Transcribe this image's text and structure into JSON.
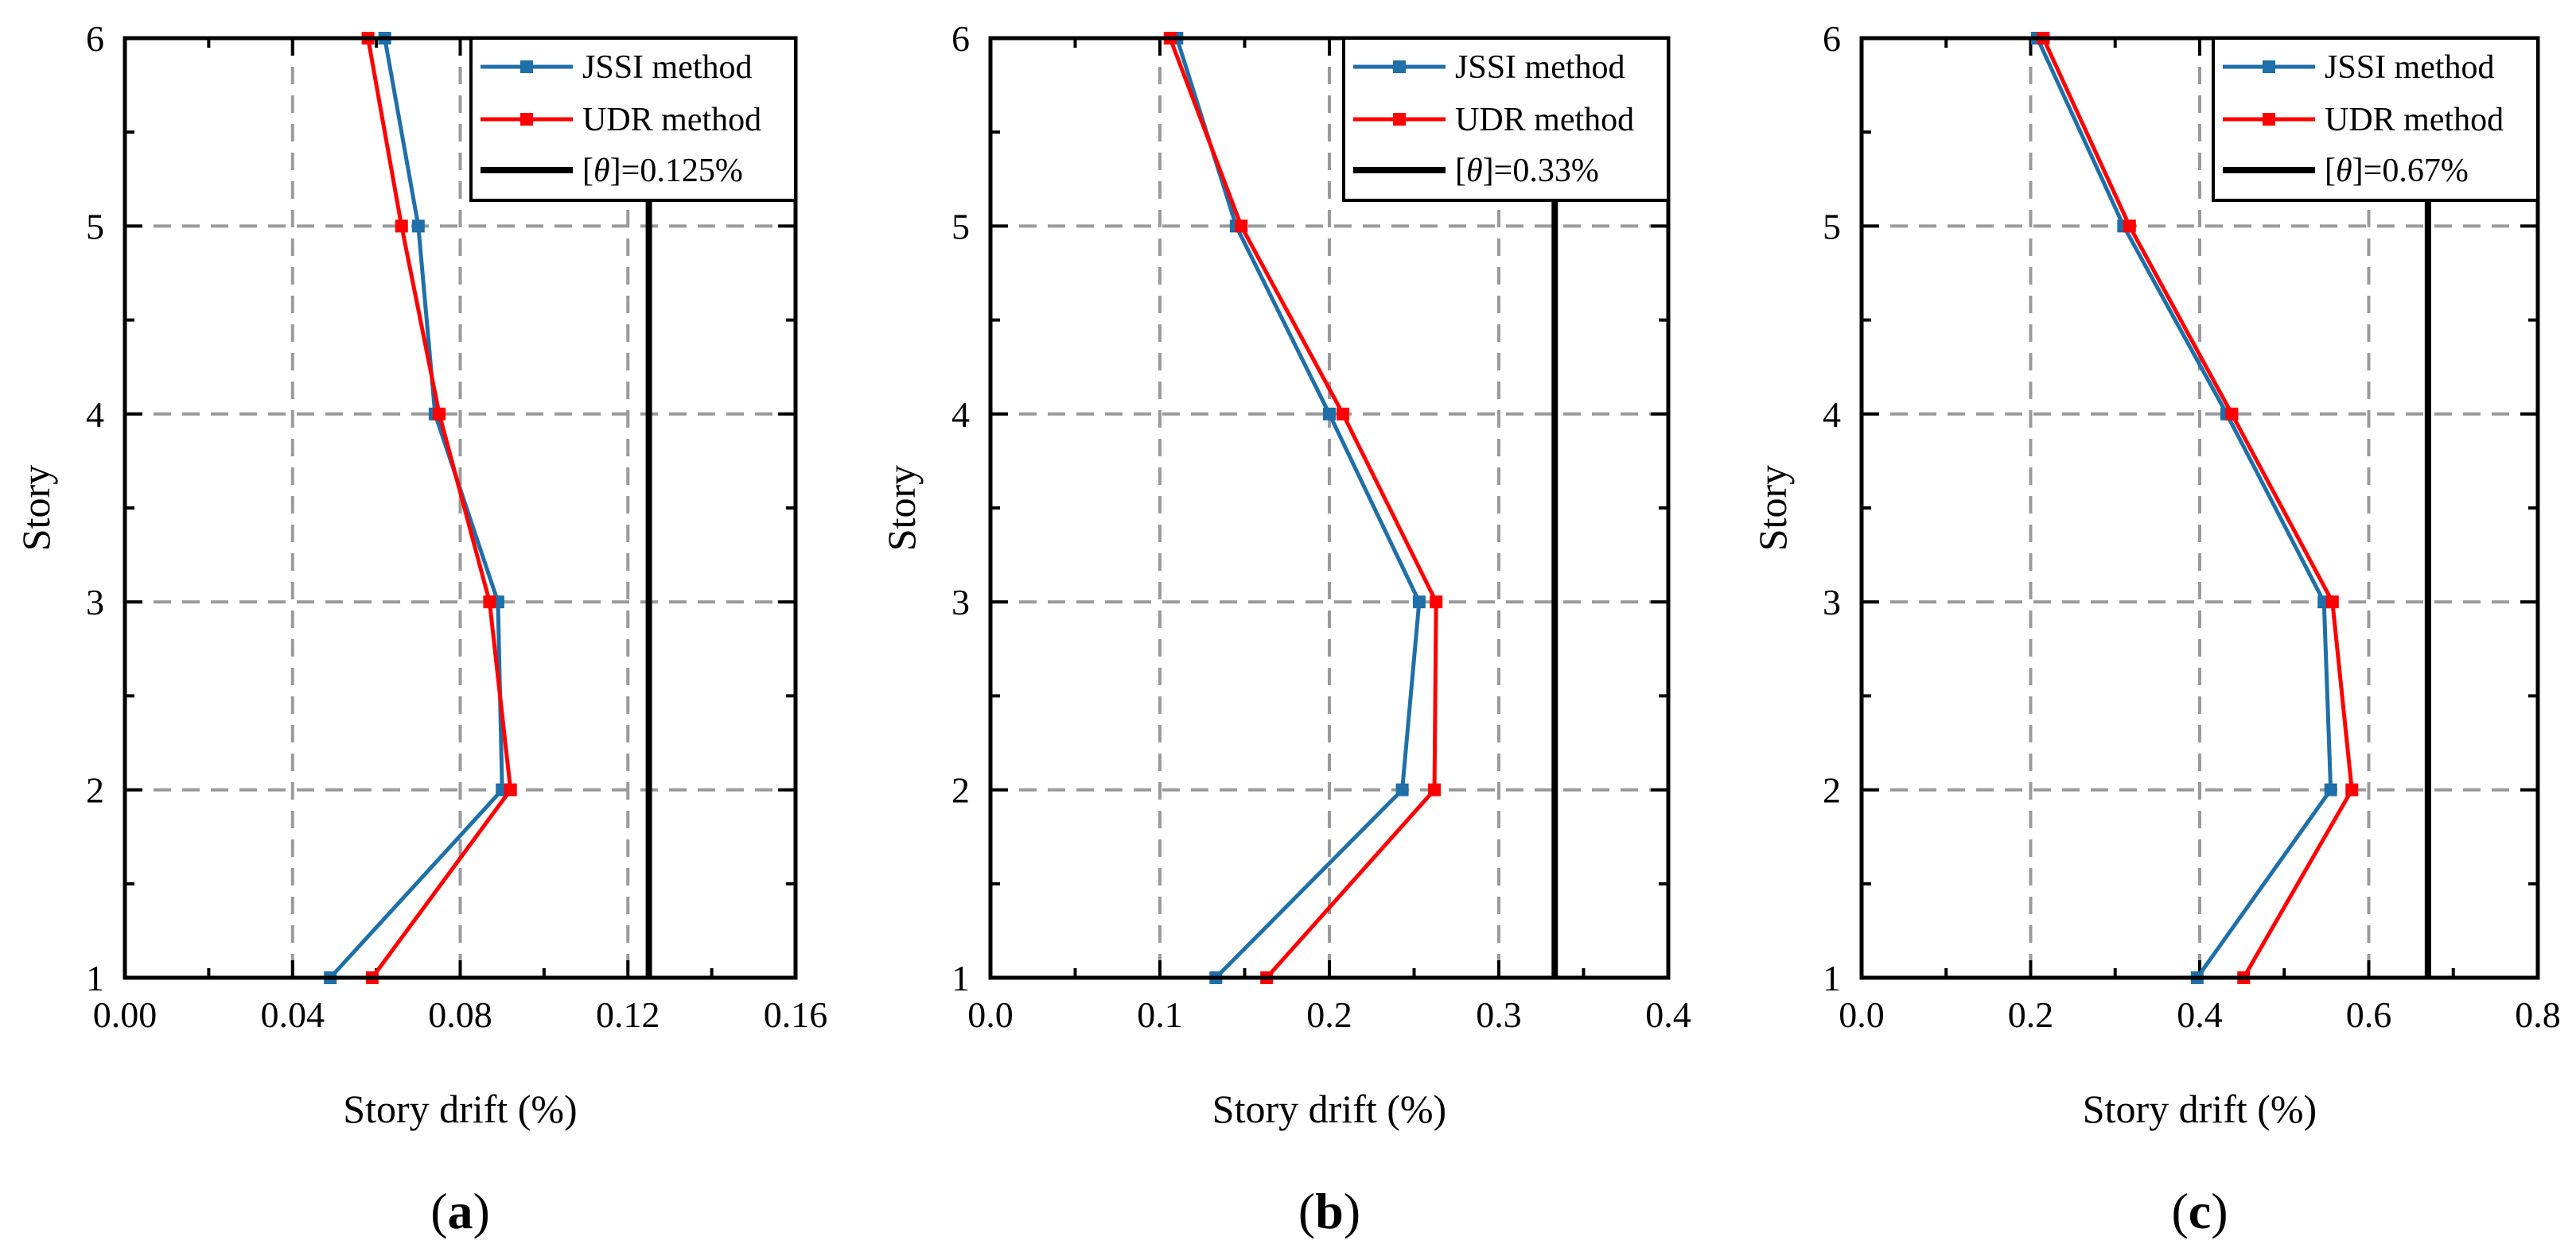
{
  "chart_data": [
    {
      "type": "line",
      "panel_label": "(a)",
      "panel_letter": "a",
      "xlabel": "Story drift (%)",
      "ylabel": "Story",
      "xlim": [
        0,
        0.16
      ],
      "ylim": [
        1,
        6
      ],
      "xticks": [
        0,
        0.04,
        0.08,
        0.12,
        0.16
      ],
      "xtick_labels": [
        "0.00",
        "0.04",
        "0.08",
        "0.12",
        "0.16"
      ],
      "yticks": [
        1,
        2,
        3,
        4,
        5,
        6
      ],
      "ytick_labels": [
        "1",
        "2",
        "3",
        "4",
        "5",
        "6"
      ],
      "grid": true,
      "legend_position": "top-right",
      "series": [
        {
          "name": "JSSI method",
          "color": "#1f6fa8",
          "x": [
            0.049,
            0.09,
            0.089,
            0.074,
            0.07,
            0.062
          ],
          "y": [
            1,
            2,
            3,
            4,
            5,
            6
          ]
        },
        {
          "name": "UDR method",
          "color": "#ff0000",
          "x": [
            0.059,
            0.092,
            0.087,
            0.075,
            0.066,
            0.058
          ],
          "y": [
            1,
            2,
            3,
            4,
            5,
            6
          ]
        }
      ],
      "limit": {
        "value": 0.125,
        "prefix": "[",
        "symbol": "θ",
        "suffix": "]=0.125%",
        "color": "#000000"
      }
    },
    {
      "type": "line",
      "panel_label": "(b)",
      "panel_letter": "b",
      "xlabel": "Story drift (%)",
      "ylabel": "Story",
      "xlim": [
        0,
        0.4
      ],
      "ylim": [
        1,
        6
      ],
      "xticks": [
        0,
        0.1,
        0.2,
        0.3,
        0.4
      ],
      "xtick_labels": [
        "0.0",
        "0.1",
        "0.2",
        "0.3",
        "0.4"
      ],
      "yticks": [
        1,
        2,
        3,
        4,
        5,
        6
      ],
      "ytick_labels": [
        "1",
        "2",
        "3",
        "4",
        "5",
        "6"
      ],
      "grid": true,
      "legend_position": "top-right",
      "series": [
        {
          "name": "JSSI method",
          "color": "#1f6fa8",
          "x": [
            0.133,
            0.243,
            0.253,
            0.2,
            0.145,
            0.11
          ],
          "y": [
            1,
            2,
            3,
            4,
            5,
            6
          ]
        },
        {
          "name": "UDR method",
          "color": "#ff0000",
          "x": [
            0.163,
            0.262,
            0.263,
            0.208,
            0.148,
            0.106
          ],
          "y": [
            1,
            2,
            3,
            4,
            5,
            6
          ]
        }
      ],
      "limit": {
        "value": 0.333,
        "prefix": "[",
        "symbol": "θ",
        "suffix": "]=0.33%",
        "color": "#000000"
      }
    },
    {
      "type": "line",
      "panel_label": "(c)",
      "panel_letter": "c",
      "xlabel": "Story drift (%)",
      "ylabel": "Story",
      "xlim": [
        0,
        0.8
      ],
      "ylim": [
        1,
        6
      ],
      "xticks": [
        0,
        0.2,
        0.4,
        0.6,
        0.8
      ],
      "xtick_labels": [
        "0.0",
        "0.2",
        "0.4",
        "0.6",
        "0.8"
      ],
      "yticks": [
        1,
        2,
        3,
        4,
        5,
        6
      ],
      "ytick_labels": [
        "1",
        "2",
        "3",
        "4",
        "5",
        "6"
      ],
      "grid": true,
      "legend_position": "top-right",
      "series": [
        {
          "name": "JSSI method",
          "color": "#1f6fa8",
          "x": [
            0.397,
            0.555,
            0.547,
            0.432,
            0.31,
            0.208
          ],
          "y": [
            1,
            2,
            3,
            4,
            5,
            6
          ]
        },
        {
          "name": "UDR method",
          "color": "#ff0000",
          "x": [
            0.452,
            0.58,
            0.557,
            0.438,
            0.317,
            0.215
          ],
          "y": [
            1,
            2,
            3,
            4,
            5,
            6
          ]
        }
      ],
      "limit": {
        "value": 0.67,
        "prefix": "[",
        "symbol": "θ",
        "suffix": "]=0.67%",
        "color": "#000000"
      }
    }
  ]
}
